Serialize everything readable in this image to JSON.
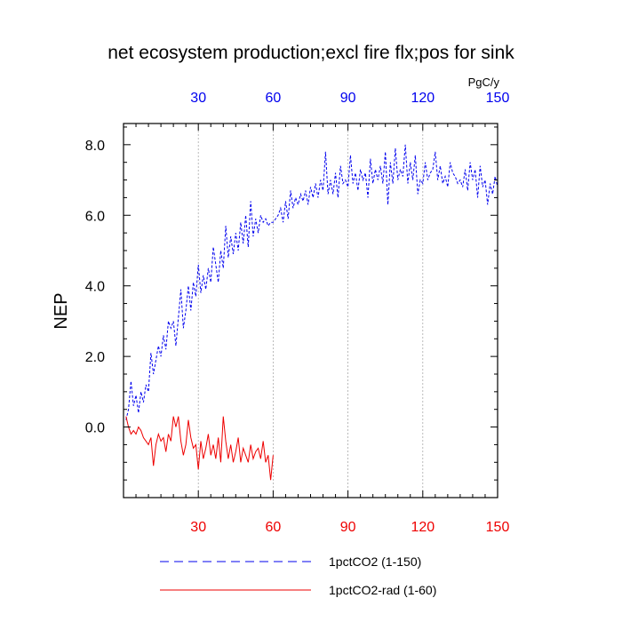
{
  "chart_data": {
    "type": "line",
    "title": "net ecosystem production;excl fire flx;pos for sink",
    "ylabel": "NEP",
    "top_axis_unit": "PgC/y",
    "xlim": [
      0,
      150
    ],
    "ylim": [
      -2,
      8.6
    ],
    "x_ticks": [
      30,
      60,
      90,
      120,
      150
    ],
    "x_tick_labels": [
      "30",
      "60",
      "90",
      "120",
      "150"
    ],
    "y_ticks": [
      0,
      2,
      4,
      6,
      8
    ],
    "y_tick_labels": [
      "0.0",
      "2.0",
      "4.0",
      "6.0",
      "8.0"
    ],
    "grid": "vertical dotted at major x ticks",
    "legend_position": "bottom",
    "series": [
      {
        "name": "1pctCO2 (1-150)",
        "color": "#0000ee",
        "style": "dashed",
        "x_start": 1,
        "values": [
          0.2,
          0.5,
          1.3,
          0.6,
          0.9,
          0.4,
          1.0,
          0.7,
          1.2,
          1.0,
          2.1,
          1.5,
          1.9,
          2.3,
          2.0,
          2.6,
          2.2,
          3.0,
          2.8,
          3.0,
          2.3,
          3.1,
          3.9,
          2.8,
          3.3,
          4.0,
          3.3,
          4.1,
          3.7,
          4.6,
          3.8,
          4.3,
          3.9,
          4.5,
          4.1,
          5.1,
          4.6,
          4.1,
          5.0,
          4.5,
          5.7,
          4.8,
          5.4,
          4.9,
          5.5,
          5.0,
          5.8,
          5.2,
          6.0,
          5.1,
          6.4,
          5.4,
          5.9,
          5.5,
          6.0,
          5.8,
          5.9,
          5.7,
          5.8,
          5.8,
          5.9,
          6.0,
          6.2,
          5.8,
          6.4,
          5.9,
          6.7,
          6.2,
          6.5,
          6.3,
          6.6,
          6.4,
          6.7,
          6.3,
          6.8,
          6.5,
          6.9,
          6.5,
          7.0,
          6.7,
          7.8,
          6.6,
          7.0,
          6.6,
          7.2,
          6.5,
          7.4,
          6.9,
          7.0,
          6.8,
          7.7,
          6.9,
          7.2,
          6.7,
          7.3,
          7.0,
          7.2,
          6.5,
          7.6,
          6.9,
          7.3,
          7.0,
          7.4,
          6.9,
          7.8,
          6.3,
          7.5,
          6.9,
          7.9,
          7.0,
          7.3,
          7.1,
          8.0,
          6.9,
          7.5,
          7.0,
          7.7,
          6.6,
          7.0,
          6.9,
          7.5,
          7.0,
          7.2,
          7.3,
          7.8,
          7.0,
          7.4,
          6.9,
          7.1,
          6.8,
          7.5,
          7.2,
          7.1,
          6.9,
          7.0,
          6.8,
          7.3,
          6.7,
          7.5,
          7.0,
          7.3,
          6.5,
          7.4,
          6.8,
          7.0,
          6.3,
          6.9,
          6.6,
          7.1,
          6.8
        ]
      },
      {
        "name": "1pctCO2-rad (1-60)",
        "color": "#ee0000",
        "style": "solid",
        "x_start": 1,
        "values": [
          0.3,
          0.0,
          -0.2,
          -0.1,
          -0.2,
          0.0,
          -0.1,
          -0.3,
          -0.4,
          -0.5,
          -0.3,
          -1.1,
          -0.5,
          -0.2,
          -0.4,
          -0.3,
          -0.7,
          -0.2,
          -0.4,
          0.3,
          0.0,
          0.3,
          -0.4,
          -0.8,
          -0.5,
          0.2,
          -0.3,
          -0.6,
          -0.5,
          -1.2,
          -0.4,
          -0.9,
          -0.6,
          -0.2,
          -0.8,
          -0.5,
          -0.9,
          -0.3,
          -1.0,
          0.3,
          -0.4,
          -0.9,
          -0.5,
          -1.0,
          -0.7,
          -0.3,
          -1.0,
          -0.6,
          -0.8,
          -1.0,
          -0.5,
          -0.9,
          -0.7,
          -0.6,
          -0.9,
          -0.4,
          -1.0,
          -0.8,
          -1.5,
          -0.8
        ]
      }
    ]
  }
}
